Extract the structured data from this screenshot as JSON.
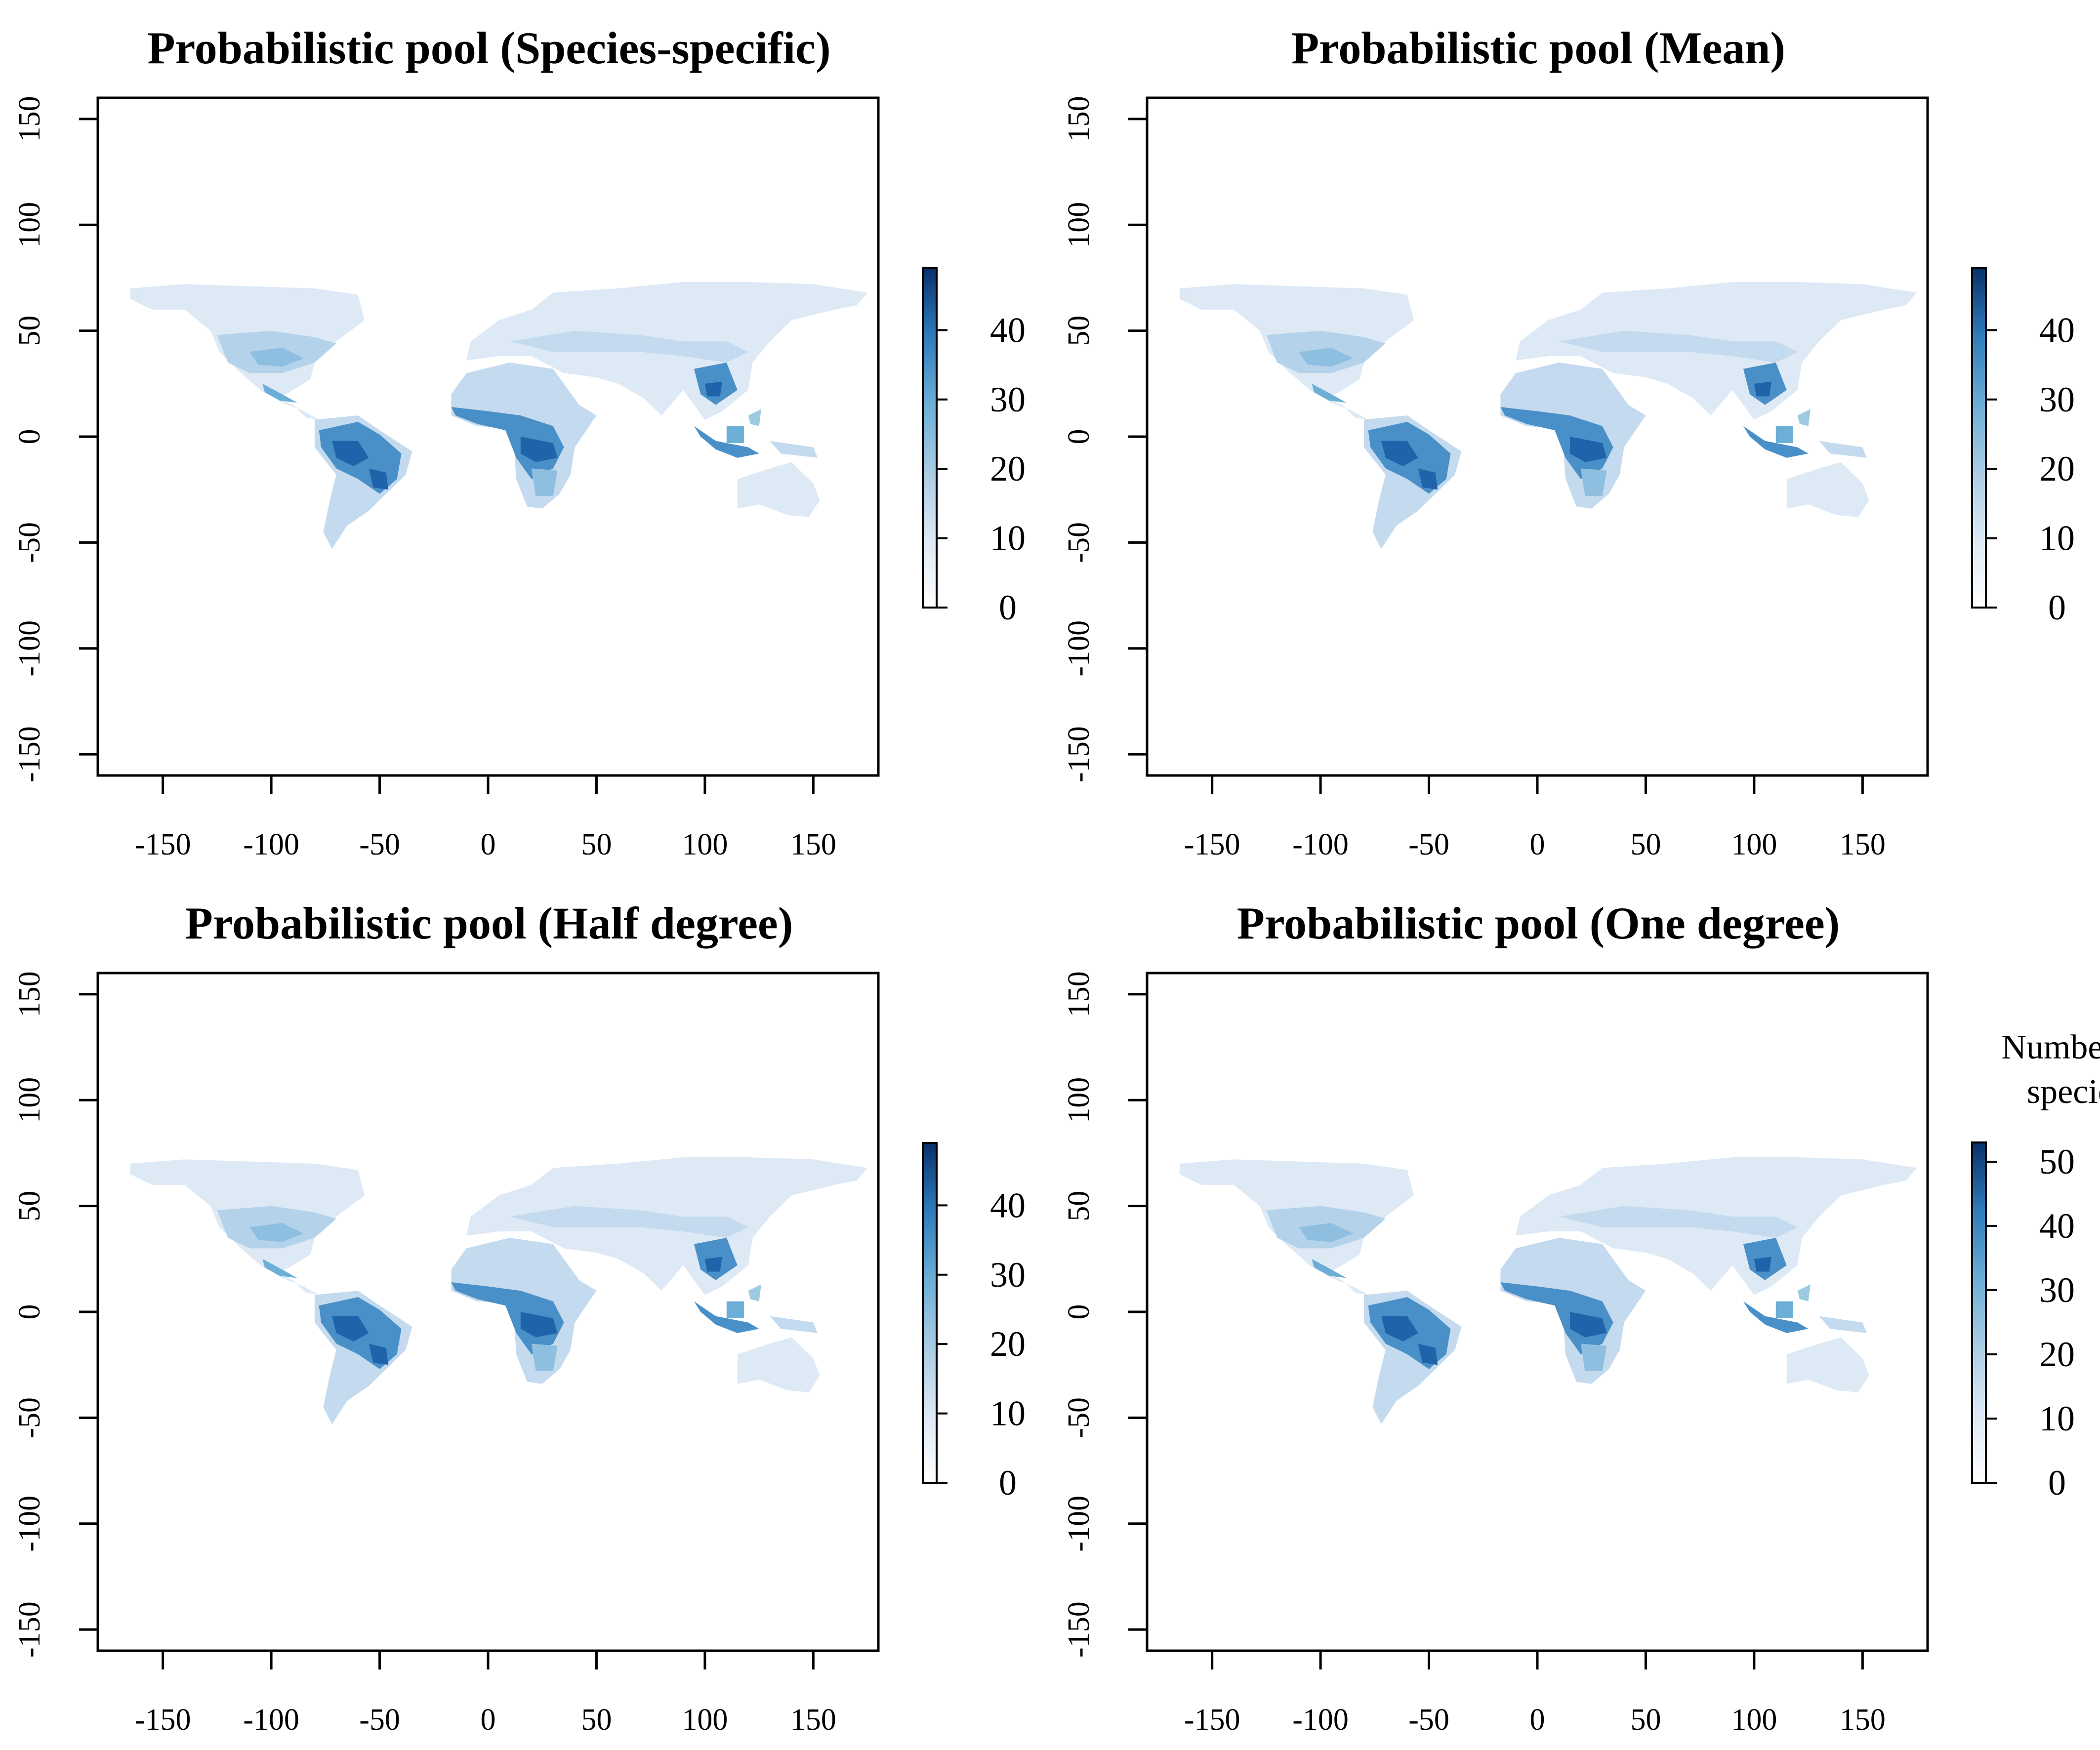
{
  "figure": {
    "panels": [
      {
        "id": "species-specific",
        "title": "Probabilistic pool (Species-specific)",
        "x_ticks": [
          "-150",
          "-100",
          "-50",
          "0",
          "50",
          "100",
          "150"
        ],
        "y_ticks": [
          "-150",
          "-100",
          "-50",
          "0",
          "50",
          "100",
          "150"
        ],
        "colorbar": {
          "max": 49,
          "ticks": [
            "0",
            "10",
            "20",
            "30",
            "40"
          ],
          "label": ""
        }
      },
      {
        "id": "mean",
        "title": "Probabilistic pool (Mean)",
        "x_ticks": [
          "-150",
          "-100",
          "-50",
          "0",
          "50",
          "100",
          "150"
        ],
        "y_ticks": [
          "-150",
          "-100",
          "-50",
          "0",
          "50",
          "100",
          "150"
        ],
        "colorbar": {
          "max": 49,
          "ticks": [
            "0",
            "10",
            "20",
            "30",
            "40"
          ],
          "label": ""
        }
      },
      {
        "id": "half-degree",
        "title": "Probabilistic pool (Half degree)",
        "x_ticks": [
          "-150",
          "-100",
          "-50",
          "0",
          "50",
          "100",
          "150"
        ],
        "y_ticks": [
          "-150",
          "-100",
          "-50",
          "0",
          "50",
          "100",
          "150"
        ],
        "colorbar": {
          "max": 49,
          "ticks": [
            "0",
            "10",
            "20",
            "30",
            "40"
          ],
          "label": ""
        }
      },
      {
        "id": "one-degree",
        "title": "Probabilistic pool (One degree)",
        "x_ticks": [
          "-150",
          "-100",
          "-50",
          "0",
          "50",
          "100",
          "150"
        ],
        "y_ticks": [
          "-150",
          "-100",
          "-50",
          "0",
          "50",
          "100",
          "150"
        ],
        "colorbar": {
          "max": 53,
          "ticks": [
            "0",
            "10",
            "20",
            "30",
            "40",
            "50"
          ],
          "label": "Number of species"
        }
      }
    ],
    "colors": {
      "scale": [
        "#ffffff",
        "#dde9f5",
        "#c4daee",
        "#9ecae1",
        "#6baed6",
        "#4292c6",
        "#2171b5",
        "#08519c",
        "#08306b"
      ],
      "land_light": "#dde9f5",
      "land_mid": "#9ecae1",
      "land_dark": "#3f85c3",
      "land_peak": "#0b4f96"
    }
  }
}
